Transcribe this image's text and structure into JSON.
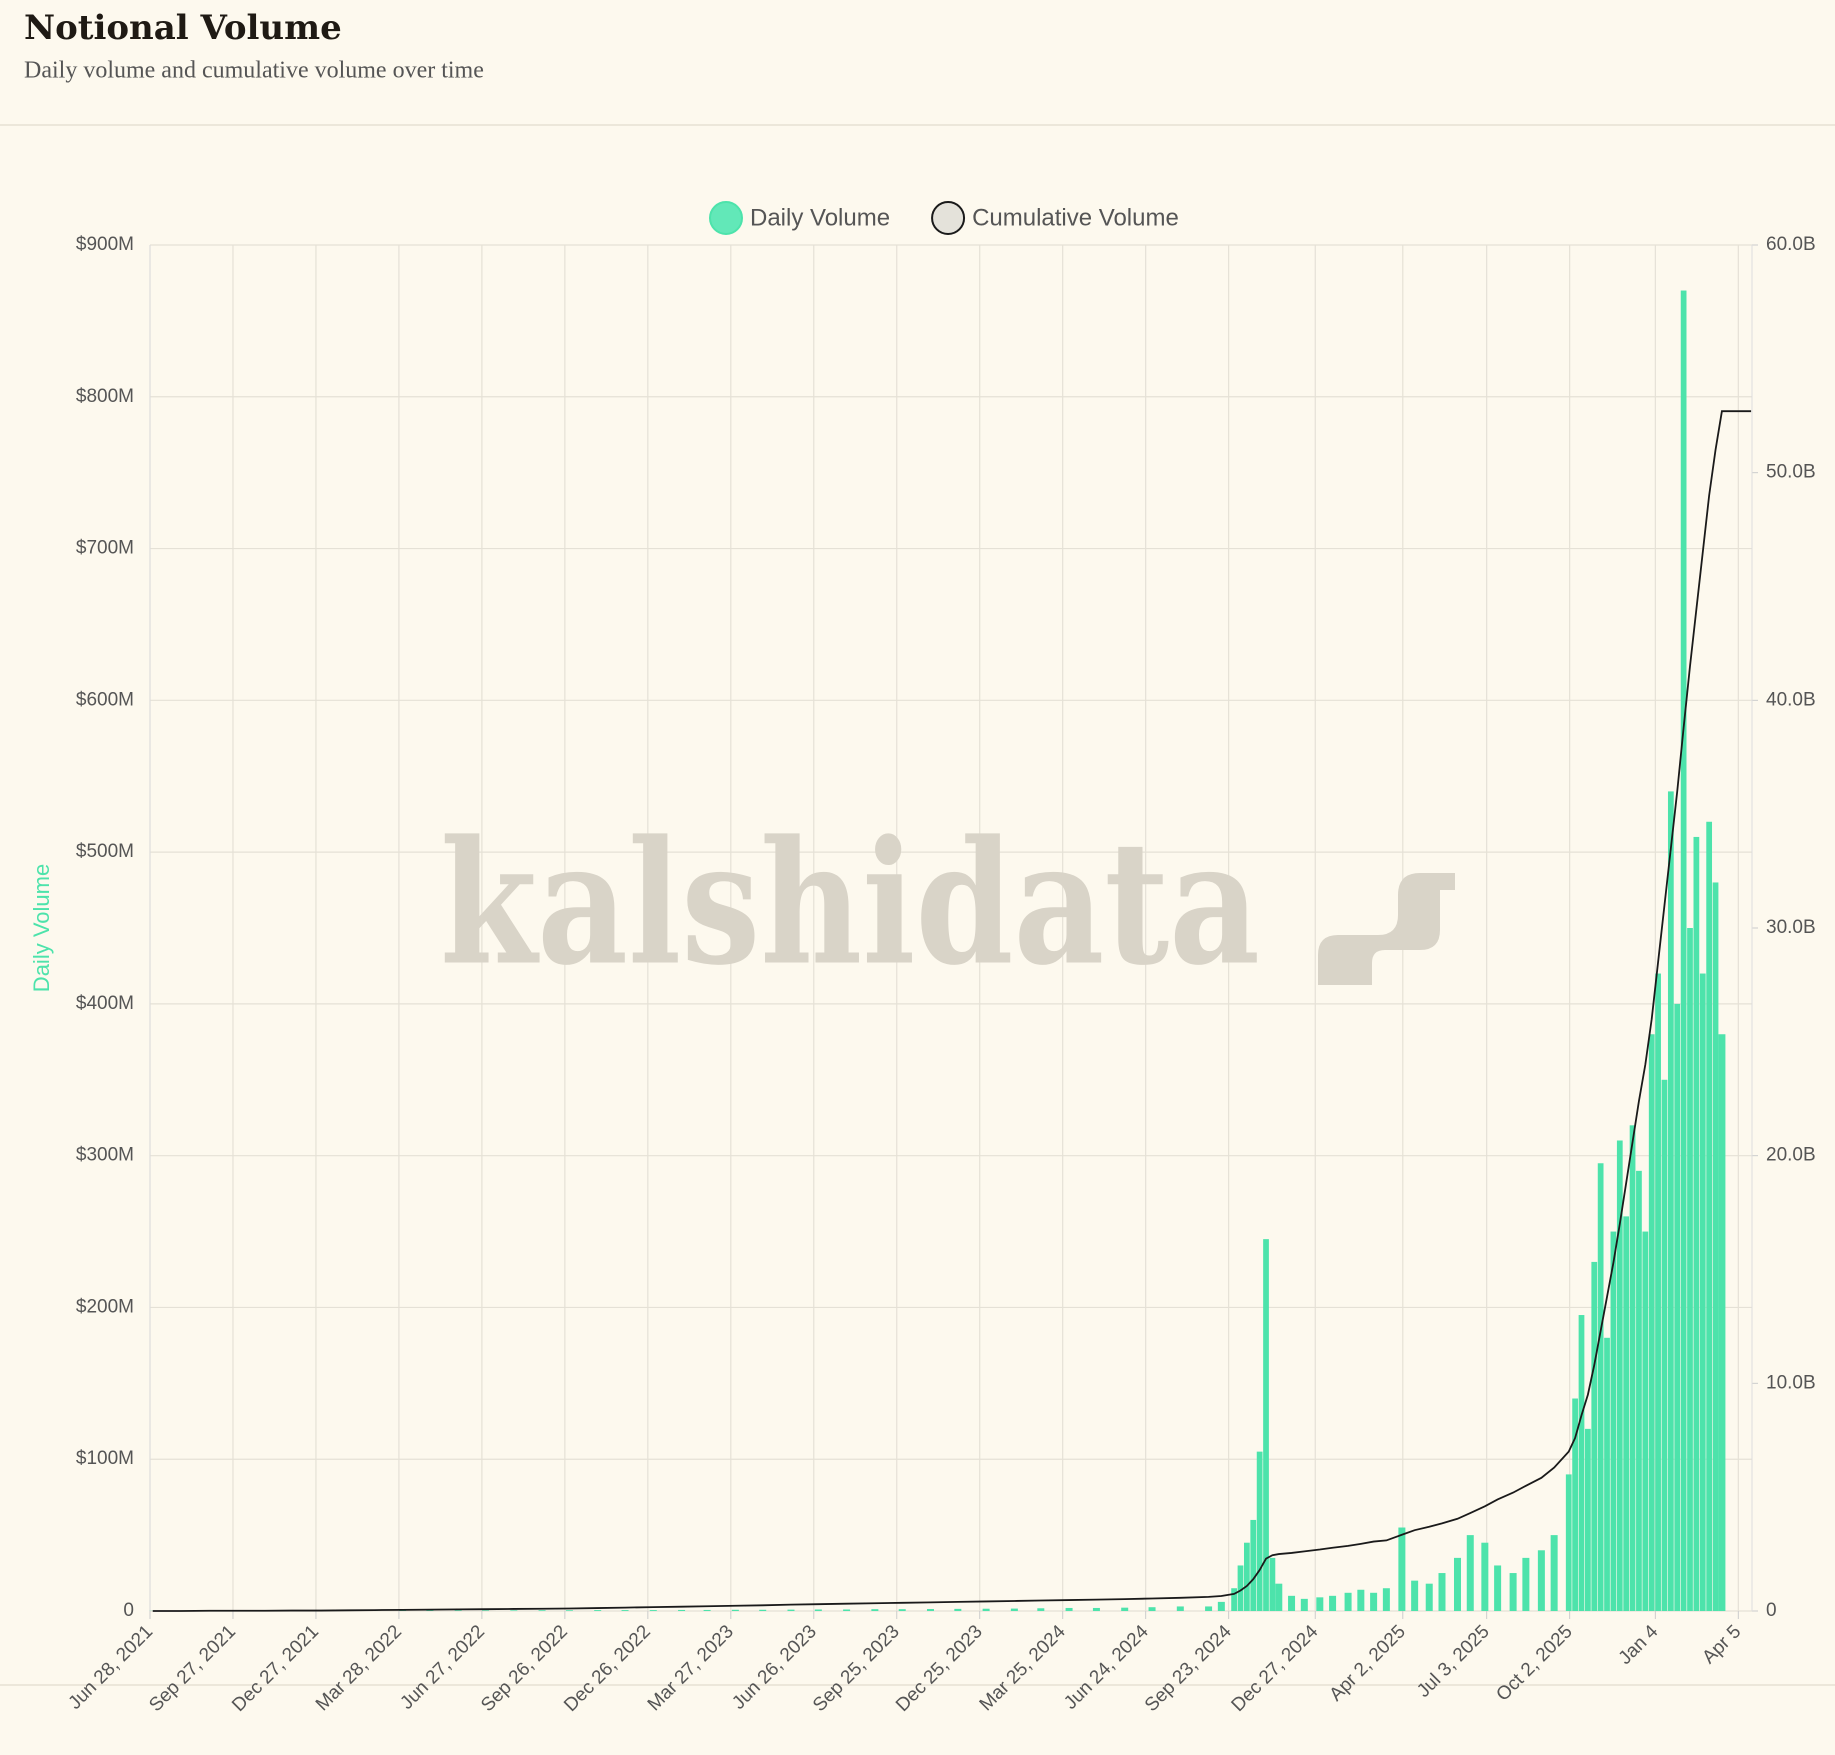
{
  "chart_data": {
    "type": "combo",
    "title": "Notional Volume",
    "subtitle": "Daily volume and cumulative volume over time",
    "ylabel": "Daily Volume",
    "watermark": "kalshidata",
    "grid": true,
    "x": [
      "2021-07-01",
      "2021-08-01",
      "2021-09-01",
      "2021-10-01",
      "2021-11-01",
      "2021-12-01",
      "2022-01-01",
      "2022-02-01",
      "2022-03-01",
      "2022-04-01",
      "2022-05-01",
      "2022-06-01",
      "2022-07-01",
      "2022-08-01",
      "2022-09-01",
      "2022-10-01",
      "2022-11-01",
      "2022-12-01",
      "2023-01-01",
      "2023-02-01",
      "2023-03-01",
      "2023-04-01",
      "2023-05-01",
      "2023-06-01",
      "2023-07-01",
      "2023-08-01",
      "2023-09-01",
      "2023-10-01",
      "2023-11-01",
      "2023-12-01",
      "2024-01-01",
      "2024-02-01",
      "2024-03-01",
      "2024-04-01",
      "2024-05-01",
      "2024-06-01",
      "2024-07-01",
      "2024-08-01",
      "2024-09-01",
      "2024-09-15",
      "2024-09-29",
      "2024-10-06",
      "2024-10-13",
      "2024-10-20",
      "2024-10-27",
      "2024-11-03",
      "2024-11-10",
      "2024-11-17",
      "2024-12-01",
      "2024-12-15",
      "2025-01-01",
      "2025-01-15",
      "2025-02-01",
      "2025-02-15",
      "2025-03-01",
      "2025-03-15",
      "2025-04-01",
      "2025-04-15",
      "2025-05-01",
      "2025-05-15",
      "2025-06-01",
      "2025-06-15",
      "2025-07-01",
      "2025-07-15",
      "2025-08-01",
      "2025-08-15",
      "2025-09-01",
      "2025-09-15",
      "2025-10-01",
      "2025-10-08",
      "2025-10-15",
      "2025-10-22",
      "2025-10-29",
      "2025-11-05",
      "2025-11-12",
      "2025-11-19",
      "2025-11-26",
      "2025-12-03",
      "2025-12-10",
      "2025-12-17",
      "2025-12-24",
      "2025-12-31",
      "2026-01-07",
      "2026-01-14",
      "2026-01-21",
      "2026-01-28",
      "2026-02-04",
      "2026-02-11",
      "2026-02-18",
      "2026-02-25",
      "2026-03-04",
      "2026-03-11",
      "2026-03-18",
      "2026-04-05",
      "2026-04-19"
    ],
    "series": [
      {
        "name": "Daily Volume",
        "type": "bar",
        "color": "#4de3ab",
        "values": [
          0.1,
          0.1,
          0.1,
          0.1,
          0.1,
          0.2,
          0.2,
          0.2,
          0.3,
          0.3,
          0.3,
          0.4,
          0.4,
          0.4,
          0.5,
          0.5,
          0.6,
          0.6,
          0.6,
          0.7,
          0.7,
          0.8,
          0.8,
          0.9,
          1,
          1,
          1.2,
          1.2,
          1.3,
          1.4,
          1.5,
          1.6,
          1.8,
          2,
          2,
          2.2,
          2.5,
          3,
          3,
          6,
          15,
          30,
          45,
          60,
          105,
          245,
          35,
          18,
          10,
          8,
          9,
          10,
          12,
          14,
          12,
          15,
          55,
          20,
          18,
          25,
          35,
          50,
          45,
          30,
          25,
          35,
          40,
          50,
          90,
          140,
          195,
          120,
          230,
          295,
          180,
          250,
          310,
          260,
          320,
          290,
          250,
          380,
          420,
          350,
          540,
          400,
          870,
          450,
          510,
          420,
          520,
          480,
          380,
          null,
          null
        ]
      },
      {
        "name": "Cumulative Volume",
        "type": "line",
        "axis": "y2",
        "color": "#1a1a1a",
        "values": [
          0,
          0,
          0.01,
          0.01,
          0.01,
          0.02,
          0.02,
          0.03,
          0.04,
          0.05,
          0.06,
          0.07,
          0.08,
          0.09,
          0.1,
          0.11,
          0.13,
          0.15,
          0.17,
          0.19,
          0.21,
          0.23,
          0.25,
          0.28,
          0.3,
          0.32,
          0.34,
          0.36,
          0.38,
          0.4,
          0.42,
          0.44,
          0.46,
          0.48,
          0.5,
          0.52,
          0.55,
          0.58,
          0.62,
          0.66,
          0.75,
          0.9,
          1.1,
          1.4,
          1.8,
          2.3,
          2.45,
          2.5,
          2.55,
          2.62,
          2.7,
          2.78,
          2.86,
          2.95,
          3.05,
          3.1,
          3.35,
          3.55,
          3.7,
          3.85,
          4.05,
          4.3,
          4.6,
          4.9,
          5.2,
          5.5,
          5.85,
          6.3,
          7.0,
          7.6,
          8.6,
          9.5,
          10.8,
          12.3,
          13.8,
          15.3,
          17.0,
          18.8,
          20.6,
          22.4,
          24.0,
          26.0,
          28.5,
          31.0,
          33.5,
          36.0,
          38.8,
          41.5,
          44.0,
          46.5,
          49.0,
          51.0,
          52.7,
          52.7,
          52.7
        ]
      }
    ],
    "xlim": [
      "2021-06-28",
      "2026-04-20"
    ],
    "xticks": [
      {
        "value": "2021-06-28",
        "label": "Jun 28, 2021"
      },
      {
        "value": "2021-09-27",
        "label": "Sep 27, 2021"
      },
      {
        "value": "2021-12-27",
        "label": "Dec 27, 2021"
      },
      {
        "value": "2022-03-28",
        "label": "Mar 28, 2022"
      },
      {
        "value": "2022-06-27",
        "label": "Jun 27, 2022"
      },
      {
        "value": "2022-09-26",
        "label": "Sep 26, 2022"
      },
      {
        "value": "2022-12-26",
        "label": "Dec 26, 2022"
      },
      {
        "value": "2023-03-27",
        "label": "Mar 27, 2023"
      },
      {
        "value": "2023-06-26",
        "label": "Jun 26, 2023"
      },
      {
        "value": "2023-09-25",
        "label": "Sep 25, 2023"
      },
      {
        "value": "2023-12-25",
        "label": "Dec 25, 2023"
      },
      {
        "value": "2024-03-25",
        "label": "Mar 25, 2024"
      },
      {
        "value": "2024-06-24",
        "label": "Jun 24, 2024"
      },
      {
        "value": "2024-09-23",
        "label": "Sep 23, 2024"
      },
      {
        "value": "2024-12-27",
        "label": "Dec 27, 2024"
      },
      {
        "value": "2025-04-02",
        "label": "Apr 2, 2025"
      },
      {
        "value": "2025-07-03",
        "label": "Jul 3, 2025"
      },
      {
        "value": "2025-10-02",
        "label": "Oct 2, 2025"
      },
      {
        "value": "2026-01-04",
        "label": "Jan 4"
      },
      {
        "value": "2026-04-05",
        "label": "Apr 5"
      }
    ],
    "ylim": [
      0,
      900
    ],
    "yticks": [
      0,
      {
        "value": 100,
        "label": "$100M"
      },
      {
        "value": 200,
        "label": "$200M"
      },
      {
        "value": 300,
        "label": "$300M"
      },
      {
        "value": 400,
        "label": "$400M"
      },
      {
        "value": 500,
        "label": "$500M"
      },
      {
        "value": 600,
        "label": "$600M"
      },
      {
        "value": 700,
        "label": "$700M"
      },
      {
        "value": 800,
        "label": "$800M"
      },
      {
        "value": 900,
        "label": "$900M"
      }
    ],
    "y2lim": [
      0,
      60
    ],
    "y2ticks": [
      0,
      {
        "value": 10,
        "label": "10.0B"
      },
      {
        "value": 20,
        "label": "20.0B"
      },
      {
        "value": 30,
        "label": "30.0B"
      },
      {
        "value": 40,
        "label": "40.0B"
      },
      {
        "value": 50,
        "label": "50.0B"
      },
      {
        "value": 60,
        "label": "60.0B"
      }
    ]
  }
}
